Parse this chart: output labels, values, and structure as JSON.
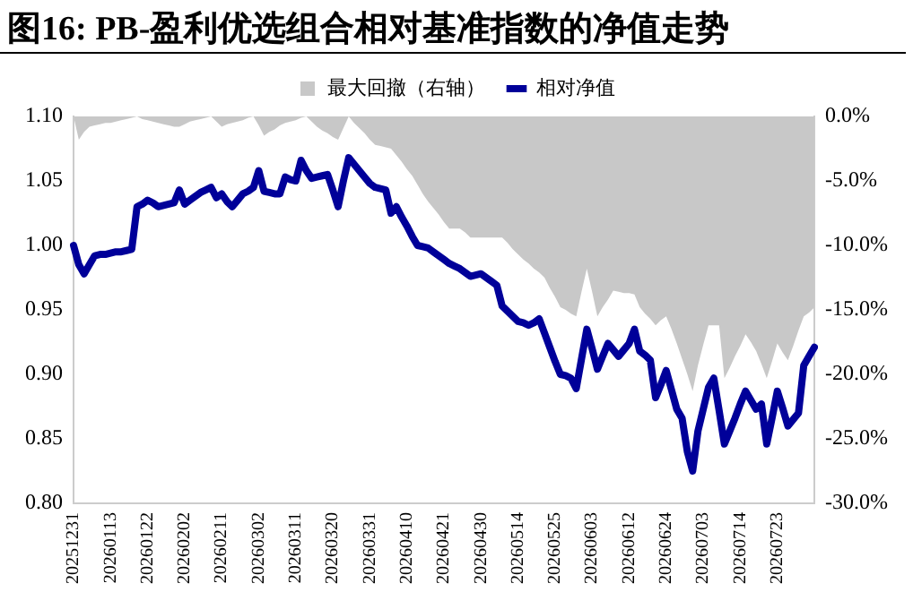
{
  "chart_data": {
    "type": "line",
    "title": "图16:  PB-盈利优选组合相对基准指数的净值走势",
    "categories": [
      "20251231",
      null,
      null,
      null,
      null,
      null,
      null,
      "20260113",
      null,
      null,
      null,
      null,
      null,
      null,
      "20260122",
      null,
      null,
      null,
      null,
      null,
      null,
      "20260202",
      null,
      null,
      null,
      null,
      null,
      null,
      "20260211",
      null,
      null,
      null,
      null,
      null,
      null,
      "20260302",
      null,
      null,
      null,
      null,
      null,
      null,
      "20260311",
      null,
      null,
      null,
      null,
      null,
      null,
      "20260320",
      null,
      null,
      null,
      null,
      null,
      null,
      "20260331",
      null,
      null,
      null,
      null,
      null,
      null,
      "20260410",
      null,
      null,
      null,
      null,
      null,
      null,
      "20260421",
      null,
      null,
      null,
      null,
      null,
      null,
      "20260430",
      null,
      null,
      null,
      null,
      null,
      null,
      "20260514",
      null,
      null,
      null,
      null,
      null,
      null,
      "20260525",
      null,
      null,
      null,
      null,
      null,
      null,
      "20260603",
      null,
      null,
      null,
      null,
      null,
      null,
      "20260612",
      null,
      null,
      null,
      null,
      null,
      null,
      "20260624",
      null,
      null,
      null,
      null,
      null,
      null,
      "20260703",
      null,
      null,
      null,
      null,
      null,
      null,
      "20260714",
      null,
      null,
      null,
      null,
      null,
      null,
      "20260723",
      null,
      null,
      null,
      null,
      null,
      null,
      null
    ],
    "series": [
      {
        "name": "最大回撤（右轴）",
        "type": "area",
        "axis": "y2",
        "color": "#c8c8c8",
        "values": [
          0,
          -1.8,
          -1.2,
          -0.8,
          -0.7,
          -0.6,
          -0.5,
          -0.5,
          -0.4,
          -0.3,
          -0.2,
          -0.1,
          0,
          -0.2,
          -0.3,
          -0.4,
          -0.5,
          -0.6,
          -0.7,
          -0.8,
          -0.8,
          -0.6,
          -0.4,
          -0.3,
          -0.2,
          -0.1,
          0,
          -0.4,
          -0.8,
          -0.6,
          -0.5,
          -0.4,
          -0.3,
          -0.1,
          0,
          -0.7,
          -1.5,
          -1.2,
          -1.0,
          -0.7,
          -0.5,
          -0.4,
          -0.3,
          -0.1,
          0,
          -0.4,
          -0.8,
          -1.1,
          -1.3,
          -1.6,
          -1.8,
          -0.9,
          0,
          -0.5,
          -0.9,
          -1.3,
          -1.8,
          -2.2,
          -2.3,
          -2.4,
          -2.5,
          -3.0,
          -3.5,
          -4.1,
          -4.6,
          -5.3,
          -6.0,
          -6.6,
          -7.1,
          -7.6,
          -8.2,
          -8.7,
          -8.7,
          -8.7,
          -9.0,
          -9.4,
          -9.4,
          -9.4,
          -9.4,
          -9.4,
          -9.4,
          -9.4,
          -9.8,
          -10.3,
          -10.7,
          -11.1,
          -11.4,
          -11.8,
          -12.1,
          -12.5,
          -13.3,
          -14.0,
          -14.8,
          -15.0,
          -15.3,
          -15.5,
          -13.6,
          -11.8,
          -13.6,
          -15.5,
          -14.8,
          -14.2,
          -13.5,
          -13.6,
          -13.7,
          -13.7,
          -13.8,
          -14.8,
          -15.3,
          -15.7,
          -16.2,
          -15.8,
          -15.5,
          -16.5,
          -17.6,
          -18.8,
          -20.0,
          -21.3,
          -19.3,
          -17.7,
          -16.2,
          -16.2,
          -16.2,
          -20.3,
          -19.5,
          -18.6,
          -17.8,
          -16.9,
          -17.5,
          -18.2,
          -19.2,
          -20.3,
          -19.0,
          -17.6,
          -18.3,
          -18.9,
          -17.8,
          -16.6,
          -15.5,
          -15.2,
          -14.8
        ]
      },
      {
        "name": "相对净值",
        "type": "line",
        "color": "#000099",
        "values": [
          1.0,
          0.985,
          0.978,
          0.985,
          0.992,
          0.993,
          0.993,
          0.994,
          0.995,
          0.995,
          0.996,
          0.997,
          1.03,
          1.032,
          1.035,
          1.033,
          1.03,
          1.031,
          1.032,
          1.033,
          1.043,
          1.032,
          1.035,
          1.038,
          1.041,
          1.043,
          1.045,
          1.037,
          1.04,
          1.034,
          1.03,
          1.035,
          1.04,
          1.042,
          1.045,
          1.058,
          1.042,
          1.041,
          1.04,
          1.04,
          1.053,
          1.051,
          1.05,
          1.066,
          1.058,
          1.052,
          1.053,
          1.054,
          1.055,
          1.043,
          1.03,
          1.05,
          1.068,
          1.063,
          1.058,
          1.053,
          1.048,
          1.045,
          1.044,
          1.043,
          1.025,
          1.03,
          1.022,
          1.015,
          1.007,
          1.0,
          0.999,
          0.998,
          0.995,
          0.992,
          0.989,
          0.986,
          0.984,
          0.982,
          0.979,
          0.976,
          0.977,
          0.978,
          0.975,
          0.972,
          0.969,
          0.953,
          0.949,
          0.945,
          0.941,
          0.94,
          0.938,
          0.94,
          0.943,
          0.932,
          0.921,
          0.91,
          0.9,
          0.899,
          0.897,
          0.889,
          0.912,
          0.935,
          0.92,
          0.904,
          0.914,
          0.924,
          0.919,
          0.914,
          0.919,
          0.924,
          0.935,
          0.918,
          0.915,
          0.911,
          0.882,
          0.892,
          0.903,
          0.888,
          0.873,
          0.866,
          0.84,
          0.825,
          0.856,
          0.873,
          0.89,
          0.897,
          0.872,
          0.846,
          0.856,
          0.866,
          0.877,
          0.887,
          0.88,
          0.873,
          0.877,
          0.846,
          0.866,
          0.887,
          0.874,
          0.86,
          0.865,
          0.87,
          0.907,
          0.914,
          0.921
        ]
      }
    ],
    "ylim": [
      0.8,
      1.1
    ],
    "yticks": [
      {
        "value": 0.8,
        "label": "0.80"
      },
      {
        "value": 0.85,
        "label": "0.85"
      },
      {
        "value": 0.9,
        "label": "0.90"
      },
      {
        "value": 0.95,
        "label": "0.95"
      },
      {
        "value": 1.0,
        "label": "1.00"
      },
      {
        "value": 1.05,
        "label": "1.05"
      },
      {
        "value": 1.1,
        "label": "1.10"
      }
    ],
    "y2lim": [
      -30,
      0
    ],
    "y2ticks": [
      {
        "value": -30,
        "label": "-30.0%"
      },
      {
        "value": -25,
        "label": "-25.0%"
      },
      {
        "value": -20,
        "label": "-20.0%"
      },
      {
        "value": -15,
        "label": "-15.0%"
      },
      {
        "value": -10,
        "label": "-10.0%"
      },
      {
        "value": -5,
        "label": "-5.0%"
      },
      {
        "value": 0,
        "label": "0.0%"
      }
    ],
    "grid": false,
    "legend": "top"
  }
}
